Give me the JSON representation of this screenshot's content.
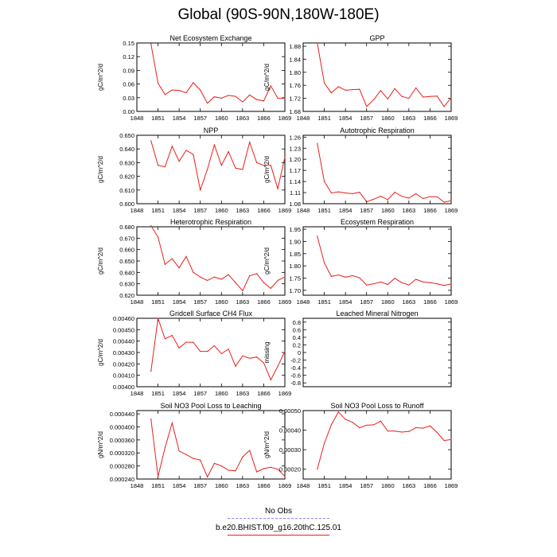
{
  "page": {
    "title": "Global (90S-90N,180W-180E)"
  },
  "style": {
    "series_color": "#e8201a",
    "obs_color": "#8a8aff"
  },
  "legend": {
    "obs_label": "No Obs",
    "case_label": "b.e20.BHIST.f09_g16.20thC.125.01"
  },
  "chart_data": [
    {
      "type": "line",
      "title": "Net Ecosystem Exchange",
      "ylabel": "gC/m^2/d",
      "ylim": [
        0,
        0.15
      ],
      "yticks": [
        "0.00",
        "0.03",
        "0.06",
        "0.09",
        "0.12",
        "0.15"
      ],
      "xlim": [
        1848,
        1869
      ],
      "xticks": [
        "1848",
        "1851",
        "1854",
        "1857",
        "1860",
        "1863",
        "1866",
        "1869"
      ],
      "x": [
        1850,
        1851,
        1852,
        1853,
        1854,
        1855,
        1856,
        1857,
        1858,
        1859,
        1860,
        1861,
        1862,
        1863,
        1864,
        1865,
        1866,
        1867,
        1868,
        1869
      ],
      "values": [
        0.148,
        0.062,
        0.037,
        0.047,
        0.046,
        0.041,
        0.063,
        0.047,
        0.018,
        0.032,
        0.029,
        0.035,
        0.033,
        0.021,
        0.036,
        0.026,
        0.023,
        0.056,
        0.029,
        0.029
      ]
    },
    {
      "type": "line",
      "title": "GPP",
      "ylabel": "gC/m^2/d",
      "ylim": [
        1.68,
        1.89
      ],
      "yticks": [
        "1.68",
        "1.72",
        "1.76",
        "1.80",
        "1.84",
        "1.88"
      ],
      "xlim": [
        1848,
        1869
      ],
      "xticks": [
        "1848",
        "1851",
        "1854",
        "1857",
        "1860",
        "1863",
        "1866",
        "1869"
      ],
      "x": [
        1850,
        1851,
        1852,
        1853,
        1854,
        1855,
        1856,
        1857,
        1858,
        1859,
        1860,
        1861,
        1862,
        1863,
        1864,
        1865,
        1866,
        1867,
        1868,
        1869
      ],
      "values": [
        1.89,
        1.767,
        1.737,
        1.756,
        1.745,
        1.747,
        1.748,
        1.695,
        1.716,
        1.744,
        1.718,
        1.75,
        1.726,
        1.72,
        1.752,
        1.724,
        1.726,
        1.727,
        1.695,
        1.722
      ]
    },
    {
      "type": "line",
      "title": "NPP",
      "ylabel": "gC/m^2/d",
      "ylim": [
        0.6,
        0.65
      ],
      "yticks": [
        "0.600",
        "0.610",
        "0.620",
        "0.630",
        "0.640",
        "0.650"
      ],
      "xlim": [
        1848,
        1869
      ],
      "xticks": [
        "1848",
        "1851",
        "1854",
        "1857",
        "1860",
        "1863",
        "1866",
        "1869"
      ],
      "x": [
        1850,
        1851,
        1852,
        1853,
        1854,
        1855,
        1856,
        1857,
        1858,
        1859,
        1860,
        1861,
        1862,
        1863,
        1864,
        1865,
        1866,
        1867,
        1868,
        1869
      ],
      "values": [
        0.646,
        0.628,
        0.627,
        0.642,
        0.631,
        0.639,
        0.636,
        0.61,
        0.625,
        0.643,
        0.628,
        0.638,
        0.626,
        0.625,
        0.645,
        0.63,
        0.628,
        0.628,
        0.611,
        0.634
      ]
    },
    {
      "type": "line",
      "title": "Autotrophic Respiration",
      "ylabel": "gC/m^2/d",
      "ylim": [
        1.08,
        1.265
      ],
      "yticks": [
        "1.08",
        "1.11",
        "1.14",
        "1.17",
        "1.20",
        "1.23",
        "1.26"
      ],
      "xlim": [
        1848,
        1869
      ],
      "xticks": [
        "1848",
        "1851",
        "1854",
        "1857",
        "1860",
        "1863",
        "1866",
        "1869"
      ],
      "x": [
        1850,
        1851,
        1852,
        1853,
        1854,
        1855,
        1856,
        1857,
        1858,
        1859,
        1860,
        1861,
        1862,
        1863,
        1864,
        1865,
        1866,
        1867,
        1868,
        1869
      ],
      "values": [
        1.243,
        1.14,
        1.109,
        1.112,
        1.109,
        1.107,
        1.111,
        1.085,
        1.092,
        1.1,
        1.091,
        1.111,
        1.1,
        1.095,
        1.107,
        1.094,
        1.099,
        1.099,
        1.084,
        1.088
      ]
    },
    {
      "type": "line",
      "title": "Heterotrophic Respiration",
      "ylabel": "gC/m^2/d",
      "ylim": [
        0.62,
        0.68
      ],
      "yticks": [
        "0.620",
        "0.630",
        "0.640",
        "0.650",
        "0.660",
        "0.670",
        "0.680"
      ],
      "xlim": [
        1848,
        1869
      ],
      "xticks": [
        "1848",
        "1851",
        "1854",
        "1857",
        "1860",
        "1863",
        "1866",
        "1869"
      ],
      "x": [
        1850,
        1851,
        1852,
        1853,
        1854,
        1855,
        1856,
        1857,
        1858,
        1859,
        1860,
        1861,
        1862,
        1863,
        1864,
        1865,
        1866,
        1867,
        1868,
        1869
      ],
      "values": [
        0.681,
        0.671,
        0.647,
        0.652,
        0.644,
        0.654,
        0.64,
        0.636,
        0.633,
        0.636,
        0.634,
        0.638,
        0.631,
        0.624,
        0.637,
        0.639,
        0.631,
        0.626,
        0.633,
        0.636
      ]
    },
    {
      "type": "line",
      "title": "Ecosystem Respiration",
      "ylabel": "gC/m^2/d",
      "ylim": [
        1.68,
        1.96
      ],
      "yticks": [
        "1.70",
        "1.75",
        "1.80",
        "1.85",
        "1.90",
        "1.95"
      ],
      "xlim": [
        1848,
        1869
      ],
      "xticks": [
        "1848",
        "1851",
        "1854",
        "1857",
        "1860",
        "1863",
        "1866",
        "1869"
      ],
      "x": [
        1850,
        1851,
        1852,
        1853,
        1854,
        1855,
        1856,
        1857,
        1858,
        1859,
        1860,
        1861,
        1862,
        1863,
        1864,
        1865,
        1866,
        1867,
        1868,
        1869
      ],
      "values": [
        1.922,
        1.812,
        1.757,
        1.763,
        1.754,
        1.76,
        1.751,
        1.722,
        1.727,
        1.734,
        1.724,
        1.749,
        1.731,
        1.722,
        1.745,
        1.734,
        1.731,
        1.727,
        1.72,
        1.726
      ]
    },
    {
      "type": "line",
      "title": "Gridcell Surface CH4 Flux",
      "ylabel": "gC/m^2/d",
      "ylim": [
        0.004,
        0.0046
      ],
      "yticks": [
        "0.00400",
        "0.00410",
        "0.00420",
        "0.00430",
        "0.00440",
        "0.00450",
        "0.00460"
      ],
      "xlim": [
        1848,
        1869
      ],
      "xticks": [
        "1848",
        "1851",
        "1854",
        "1857",
        "1860",
        "1863",
        "1866",
        "1869"
      ],
      "x": [
        1850,
        1851,
        1852,
        1853,
        1854,
        1855,
        1856,
        1857,
        1858,
        1859,
        1860,
        1861,
        1862,
        1863,
        1864,
        1865,
        1866,
        1867,
        1868,
        1869
      ],
      "values": [
        0.004135,
        0.0046,
        0.00442,
        0.00445,
        0.00434,
        0.00439,
        0.00439,
        0.00431,
        0.00431,
        0.00436,
        0.00429,
        0.00433,
        0.00418,
        0.00427,
        0.00425,
        0.00426,
        0.00421,
        0.00406,
        0.00418,
        0.00431
      ]
    },
    {
      "type": "line",
      "title": "Leached Mineral Nitrogen",
      "ylabel": "missing",
      "ylim": [
        -0.9,
        0.9
      ],
      "yticks": [
        "-0.8",
        "-0.6",
        "-0.4",
        "-0.2",
        "0",
        "0.2",
        "0.4",
        "0.6",
        "0.8"
      ],
      "xlim": [
        1848,
        1869
      ],
      "xticks": [],
      "x": [],
      "values": []
    },
    {
      "type": "line",
      "title": "Soil NO3 Pool Loss to Leaching",
      "ylabel": "gN/m^2/d",
      "ylim": [
        0.00024,
        0.00045
      ],
      "yticks": [
        "0.000240",
        "0.000280",
        "0.000320",
        "0.000360",
        "0.000400",
        "0.000440"
      ],
      "xlim": [
        1848,
        1869
      ],
      "xticks": [
        "1848",
        "1851",
        "1854",
        "1857",
        "1860",
        "1863",
        "1866",
        "1869"
      ],
      "x": [
        1850,
        1851,
        1852,
        1853,
        1854,
        1855,
        1856,
        1857,
        1858,
        1859,
        1860,
        1861,
        1862,
        1863,
        1864,
        1865,
        1866,
        1867,
        1868,
        1869
      ],
      "values": [
        0.000424,
        0.000248,
        0.000336,
        0.000412,
        0.000326,
        0.000315,
        0.000303,
        0.000298,
        0.000246,
        0.000288,
        0.00028,
        0.000267,
        0.000265,
        0.000308,
        0.000328,
        0.000262,
        0.000272,
        0.000276,
        0.00027,
        0.000248
      ]
    },
    {
      "type": "line",
      "title": "Soil NO3 Pool Loss to Runoff",
      "ylabel": "gN/m^2/d",
      "ylim": [
        0.00015,
        0.0005
      ],
      "yticks": [
        "0.00020",
        "0.00030",
        "0.00040",
        "0.00050"
      ],
      "xlim": [
        1848,
        1869
      ],
      "xticks": [
        "1848",
        "1851",
        "1854",
        "1857",
        "1860",
        "1863",
        "1866",
        "1869"
      ],
      "x": [
        1850,
        1851,
        1852,
        1853,
        1854,
        1855,
        1856,
        1857,
        1858,
        1859,
        1860,
        1861,
        1862,
        1863,
        1864,
        1865,
        1866,
        1867,
        1868,
        1869
      ],
      "values": [
        0.0002,
        0.000333,
        0.000428,
        0.000493,
        0.000455,
        0.00044,
        0.000412,
        0.000425,
        0.000427,
        0.000446,
        0.000395,
        0.000395,
        0.00039,
        0.000393,
        0.000413,
        0.00041,
        0.000422,
        0.000388,
        0.000347,
        0.000352
      ]
    }
  ]
}
